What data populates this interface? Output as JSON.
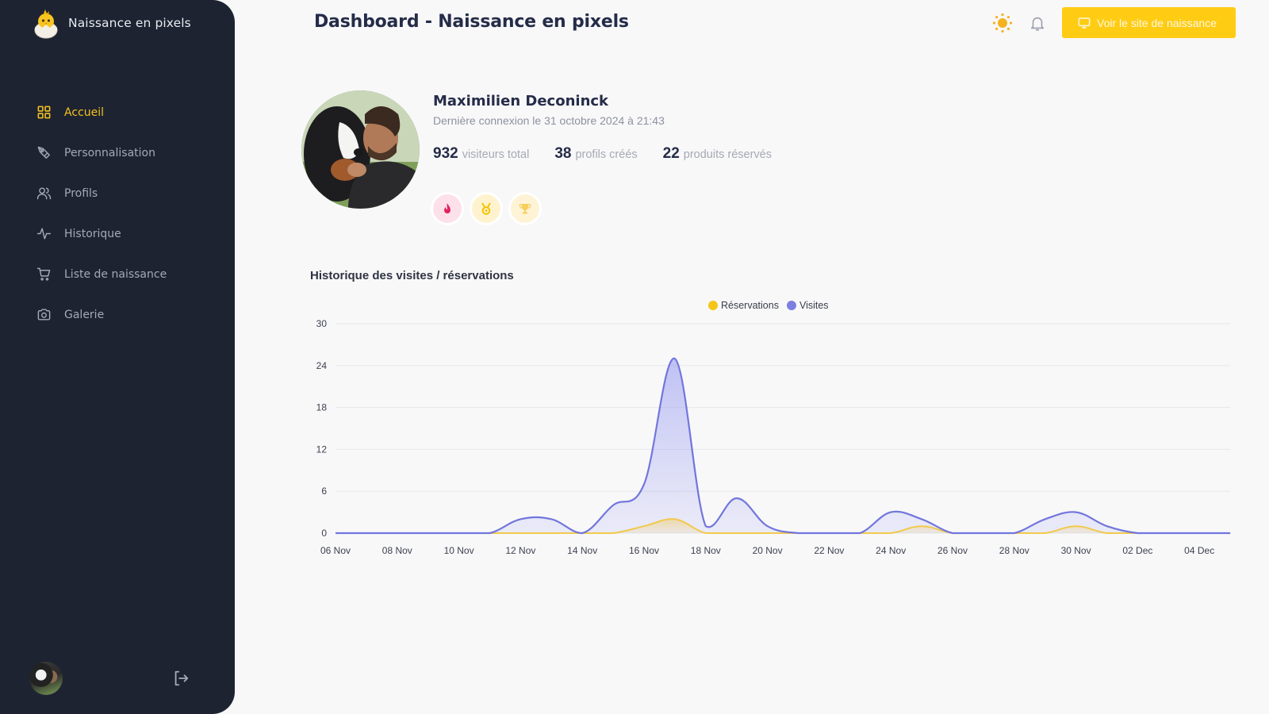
{
  "app": {
    "brand_name": "Naissance en pixels",
    "page_title": "Dashboard - Naissance en pixels"
  },
  "sidebar": {
    "items": [
      {
        "label": "Accueil",
        "icon": "grid-icon",
        "active": true
      },
      {
        "label": "Personnalisation",
        "icon": "pen-tool-icon",
        "active": false
      },
      {
        "label": "Profils",
        "icon": "users-icon",
        "active": false
      },
      {
        "label": "Historique",
        "icon": "activity-icon",
        "active": false
      },
      {
        "label": "Liste de naissance",
        "icon": "shopping-cart-icon",
        "active": false
      },
      {
        "label": "Galerie",
        "icon": "camera-icon",
        "active": false
      }
    ],
    "footer": {
      "avatar": "user-avatar",
      "logout_icon": "logout-icon"
    }
  },
  "header": {
    "theme_icon": "sun-icon",
    "notification_icon": "bell-icon",
    "site_button_label": "Voir le site de naissance",
    "site_button_icon": "monitor-icon"
  },
  "profile": {
    "name": "Maximilien Deconinck",
    "last_login": "Dernière connexion le 31 octobre 2024 à 21:43",
    "stats": [
      {
        "value": "932",
        "label": "visiteurs total"
      },
      {
        "value": "38",
        "label": "profils créés"
      },
      {
        "value": "22",
        "label": "produits réservés"
      }
    ],
    "badges": [
      {
        "icon": "flame-icon",
        "bg": "#fde1ea",
        "fg": "#e0245e"
      },
      {
        "icon": "medal-icon",
        "bg": "#fff3cf",
        "fg": "#f2c300"
      },
      {
        "icon": "trophy-icon",
        "bg": "#fff3d6",
        "fg": "#f7cf5c"
      }
    ]
  },
  "colors": {
    "accent": "#ffcc14",
    "sidebar_bg": "#1e2332",
    "visits": "#7b7fe0",
    "reservations": "#f2c94c"
  },
  "chart_data": {
    "type": "area",
    "title": "Historique des visites / réservations",
    "xlabel": "",
    "ylabel": "",
    "ylim": [
      0,
      30
    ],
    "yticks": [
      0,
      6,
      12,
      18,
      24,
      30
    ],
    "grid": true,
    "legend_position": "top",
    "x": [
      "06 Nov",
      "07 Nov",
      "08 Nov",
      "09 Nov",
      "10 Nov",
      "11 Nov",
      "12 Nov",
      "13 Nov",
      "14 Nov",
      "15 Nov",
      "16 Nov",
      "17 Nov",
      "18 Nov",
      "19 Nov",
      "20 Nov",
      "21 Nov",
      "22 Nov",
      "23 Nov",
      "24 Nov",
      "25 Nov",
      "26 Nov",
      "27 Nov",
      "28 Nov",
      "29 Nov",
      "30 Nov",
      "01 Dec",
      "02 Dec",
      "03 Dec",
      "04 Dec",
      "05 Dec"
    ],
    "xtick_labels": [
      "06 Nov",
      "08 Nov",
      "10 Nov",
      "12 Nov",
      "14 Nov",
      "16 Nov",
      "18 Nov",
      "20 Nov",
      "22 Nov",
      "24 Nov",
      "26 Nov",
      "28 Nov",
      "30 Nov",
      "02 Dec",
      "04 Dec"
    ],
    "series": [
      {
        "name": "Réservations",
        "color": "#f2c94c",
        "values": [
          0,
          0,
          0,
          0,
          0,
          0,
          0,
          0,
          0,
          0,
          1,
          2,
          0,
          0,
          0,
          0,
          0,
          0,
          0,
          1,
          0,
          0,
          0,
          0,
          1,
          0,
          0,
          0,
          0,
          0
        ]
      },
      {
        "name": "Visites",
        "color": "#7b7fe0",
        "values": [
          0,
          0,
          0,
          0,
          0,
          0,
          2,
          2,
          0,
          4,
          7,
          25,
          1,
          5,
          1,
          0,
          0,
          0,
          3,
          2,
          0,
          0,
          0,
          2,
          3,
          1,
          0,
          0,
          0,
          0
        ]
      }
    ]
  }
}
